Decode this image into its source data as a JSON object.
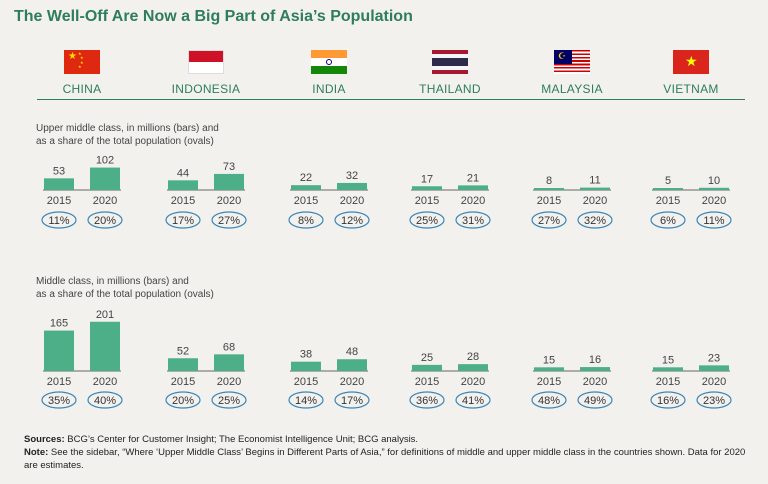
{
  "title": "The Well-Off Are Now a Big Part of Asia’s Population",
  "countries": [
    {
      "name": "CHINA",
      "flag": "china-flag-icon"
    },
    {
      "name": "INDONESIA",
      "flag": "indonesia-flag-icon"
    },
    {
      "name": "INDIA",
      "flag": "india-flag-icon"
    },
    {
      "name": "THAILAND",
      "flag": "thailand-flag-icon"
    },
    {
      "name": "MALAYSIA",
      "flag": "malaysia-flag-icon"
    },
    {
      "name": "VIETNAM",
      "flag": "vietnam-flag-icon"
    }
  ],
  "sections": {
    "upper": {
      "label_line1": "Upper middle class, in millions (bars) and",
      "label_line2": "as a share of the total population (ovals)"
    },
    "middle": {
      "label_line1": "Middle class, in millions (bars) and",
      "label_line2": "as a share of the total population (ovals)"
    }
  },
  "footer": {
    "sources_label": "Sources:",
    "sources_text": " BCG’s Center for Customer Insight; The Economist Intelligence Unit; BCG analysis.",
    "note_label": "Note:",
    "note_text": " See the sidebar, “Where ‘Upper Middle Class’ Begins in Different Parts of Asia,” for definitions of middle and upper middle class in the countries shown. Data for 2020 are estimates."
  },
  "colors": {
    "bar": "#4caf87",
    "title": "#2e7d5b",
    "oval": "#3b86b8"
  },
  "chart_data": [
    {
      "type": "bar",
      "title": "Upper middle class, in millions (bars) and as a share of the total population (ovals)",
      "groups": [
        "CHINA",
        "INDONESIA",
        "INDIA",
        "THAILAND",
        "MALAYSIA",
        "VIETNAM"
      ],
      "categories": [
        "2015",
        "2020"
      ],
      "values": [
        [
          53,
          102
        ],
        [
          44,
          73
        ],
        [
          22,
          32
        ],
        [
          17,
          21
        ],
        [
          8,
          11
        ],
        [
          5,
          10
        ]
      ],
      "shares": [
        [
          "11%",
          "20%"
        ],
        [
          "17%",
          "27%"
        ],
        [
          "8%",
          "12%"
        ],
        [
          "25%",
          "31%"
        ],
        [
          "27%",
          "32%"
        ],
        [
          "6%",
          "11%"
        ]
      ]
    },
    {
      "type": "bar",
      "title": "Middle class, in millions (bars) and as a share of the total population (ovals)",
      "groups": [
        "CHINA",
        "INDONESIA",
        "INDIA",
        "THAILAND",
        "MALAYSIA",
        "VIETNAM"
      ],
      "categories": [
        "2015",
        "2020"
      ],
      "values": [
        [
          165,
          201
        ],
        [
          52,
          68
        ],
        [
          38,
          48
        ],
        [
          25,
          28
        ],
        [
          15,
          16
        ],
        [
          15,
          23
        ]
      ],
      "shares": [
        [
          "35%",
          "40%"
        ],
        [
          "20%",
          "25%"
        ],
        [
          "14%",
          "17%"
        ],
        [
          "36%",
          "41%"
        ],
        [
          "48%",
          "49%"
        ],
        [
          "16%",
          "23%"
        ]
      ]
    }
  ]
}
